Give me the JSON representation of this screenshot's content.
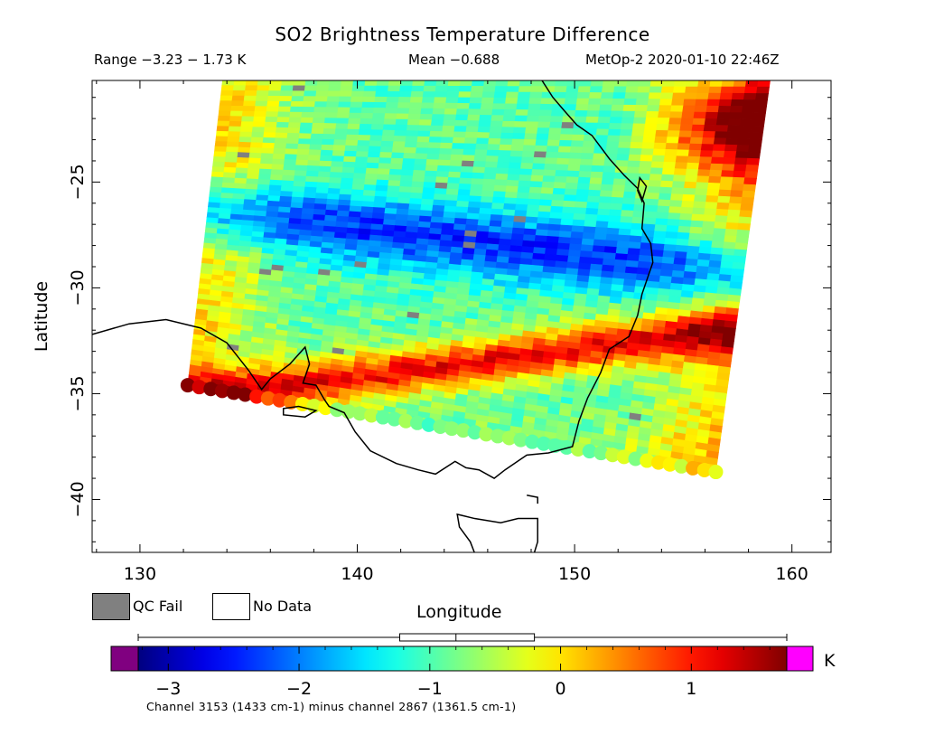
{
  "header": {
    "title": "SO2 Brightness Temperature Difference",
    "range": "Range −3.23 − 1.73 K",
    "mean": "Mean −0.688",
    "satellite_time": "MetOp-2 2020-01-10 22:46Z"
  },
  "axes": {
    "ylabel": "Latitude",
    "xlabel": "Longitude",
    "xlim": [
      127.8,
      161.8
    ],
    "ylim": [
      -42.5,
      -20.2
    ],
    "xticks": [
      130,
      140,
      150,
      160
    ],
    "yticks": [
      -25,
      -30,
      -35,
      -40
    ],
    "xtick_labels": [
      "130",
      "140",
      "150",
      "160"
    ],
    "ytick_labels": [
      "−25",
      "−30",
      "−35",
      "−40"
    ]
  },
  "legend": {
    "qc_fail": "QC Fail",
    "no_data": "No Data",
    "qc_fail_color": "#808080",
    "no_data_color": "#ffffff"
  },
  "colorbar": {
    "unit": "K",
    "vmin": -3.23,
    "vmax": 1.73,
    "ticks": [
      -3,
      -2,
      -1,
      0,
      1
    ],
    "tick_labels": [
      "−3",
      "−2",
      "−1",
      "0",
      "1"
    ],
    "under_color": "#800080",
    "over_color": "#ff00ff",
    "boxplot": {
      "min": -3.23,
      "q1": -1.23,
      "median": -0.8,
      "q3": -0.2,
      "max": 1.73
    }
  },
  "map_data": {
    "type": "swath-heatmap",
    "swath_corners_lonlat": [
      [
        133.8,
        -20.2
      ],
      [
        159.0,
        -20.2
      ],
      [
        156.5,
        -38.7
      ],
      [
        132.2,
        -34.6
      ]
    ],
    "features": [
      {
        "name": "low BTD band",
        "lat_center": -27.8,
        "value": -2.4
      },
      {
        "name": "warm band",
        "lat_center": -33.6,
        "value": 1.2
      },
      {
        "name": "warm northeast corner",
        "lat_center": -22.5,
        "value": 1.5
      }
    ]
  },
  "footnote": "Channel 3153 (1433 cm-1) minus channel 2867 (1361.5 cm-1)"
}
